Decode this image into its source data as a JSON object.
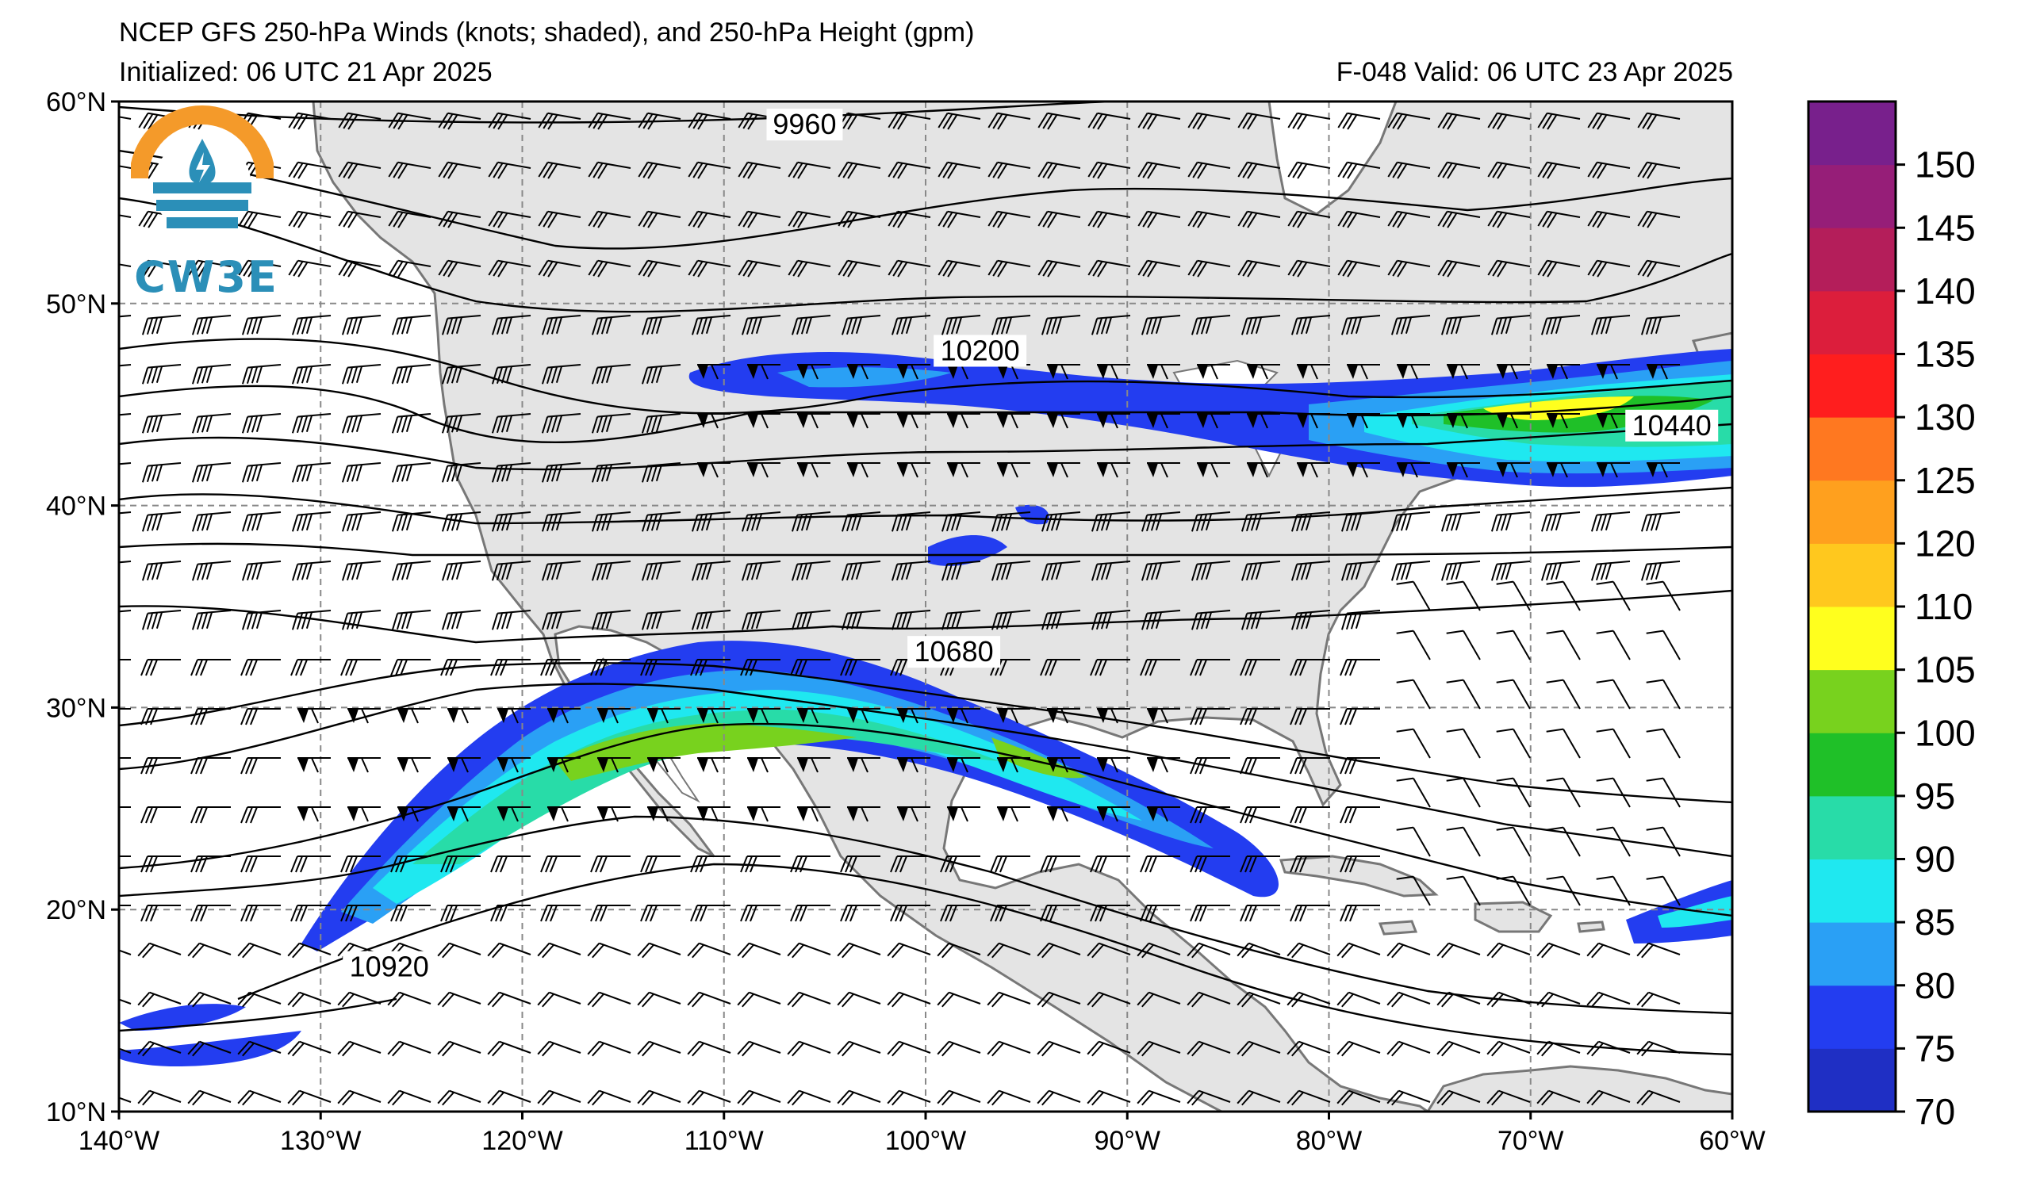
{
  "header": {
    "title": "NCEP GFS 250-hPa Winds (knots; shaded), and 250-hPa Height (gpm)",
    "initialized": "Initialized: 06 UTC 21 Apr 2025",
    "valid": "F-048  Valid: 06 UTC 23 Apr 2025"
  },
  "logo": {
    "text": "CW3E"
  },
  "map": {
    "lon_range": [
      -140,
      -60
    ],
    "lat_range": [
      10,
      60
    ],
    "lon_ticks": [
      "140°W",
      "130°W",
      "120°W",
      "110°W",
      "100°W",
      "90°W",
      "80°W",
      "70°W",
      "60°W"
    ],
    "lat_ticks": [
      "10°N",
      "20°N",
      "30°N",
      "40°N",
      "50°N",
      "60°N"
    ],
    "gridlines": true,
    "colors": {
      "land": "#e4e4e4",
      "ocean": "#ffffff",
      "coast": "#777777"
    }
  },
  "height_contours": {
    "labels": [
      {
        "text": "9960",
        "lon": -106,
        "lat": 58.7
      },
      {
        "text": "10200",
        "lon": -97.3,
        "lat": 47.5
      },
      {
        "text": "10440",
        "lon": -63.0,
        "lat": 43.8
      },
      {
        "text": "10680",
        "lon": -98.6,
        "lat": 32.6
      },
      {
        "text": "10920",
        "lon": -126.6,
        "lat": 17.0
      }
    ]
  },
  "colorbar": {
    "levels": [
      70,
      75,
      80,
      85,
      90,
      95,
      100,
      105,
      110,
      120,
      125,
      130,
      135,
      140,
      145,
      150
    ],
    "tick_labels": [
      "70",
      "75",
      "80",
      "85",
      "90",
      "95",
      "100",
      "105",
      "110",
      "120",
      "125",
      "130",
      "135",
      "140",
      "145",
      "150"
    ],
    "colors": [
      "#1f2fc4",
      "#233df0",
      "#2aa0f5",
      "#1fe8f0",
      "#28dca8",
      "#1fc028",
      "#78d21e",
      "#ffff1e",
      "#ffc81e",
      "#ffa01e",
      "#ff7820",
      "#ff1e1e",
      "#dc1e3c",
      "#b41e5a",
      "#961e78",
      "#78208c"
    ]
  }
}
